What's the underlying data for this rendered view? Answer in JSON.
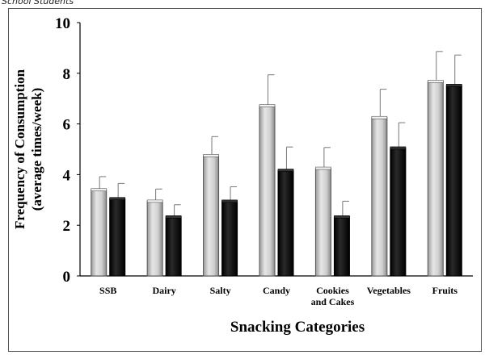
{
  "caption": "School Students",
  "chart_data": {
    "type": "bar",
    "categories": [
      [
        "SSB"
      ],
      [
        "Dairy"
      ],
      [
        "Salty"
      ],
      [
        "Candy"
      ],
      [
        "Cookies",
        "and Cakes"
      ],
      [
        "Vegetables"
      ],
      [
        "Fruits"
      ]
    ],
    "series": [
      {
        "color": "#c8c8c8",
        "values": [
          3.4,
          2.95,
          4.75,
          6.72,
          4.25,
          6.25,
          7.68
        ],
        "errors": [
          0.52,
          0.48,
          0.75,
          1.22,
          0.82,
          1.12,
          1.18
        ]
      },
      {
        "color": "#000000",
        "values": [
          3.05,
          2.33,
          2.95,
          4.17,
          2.33,
          5.05,
          7.52
        ],
        "errors": [
          0.6,
          0.48,
          0.57,
          0.92,
          0.62,
          1.0,
          1.2
        ]
      }
    ],
    "xlabel": "Snacking Categories",
    "ylabel": [
      "Frequency of Consumption",
      "(average times/week)"
    ],
    "ylim": [
      0,
      10
    ],
    "yticks": [
      0,
      2,
      4,
      6,
      8,
      10
    ],
    "grid": false
  }
}
